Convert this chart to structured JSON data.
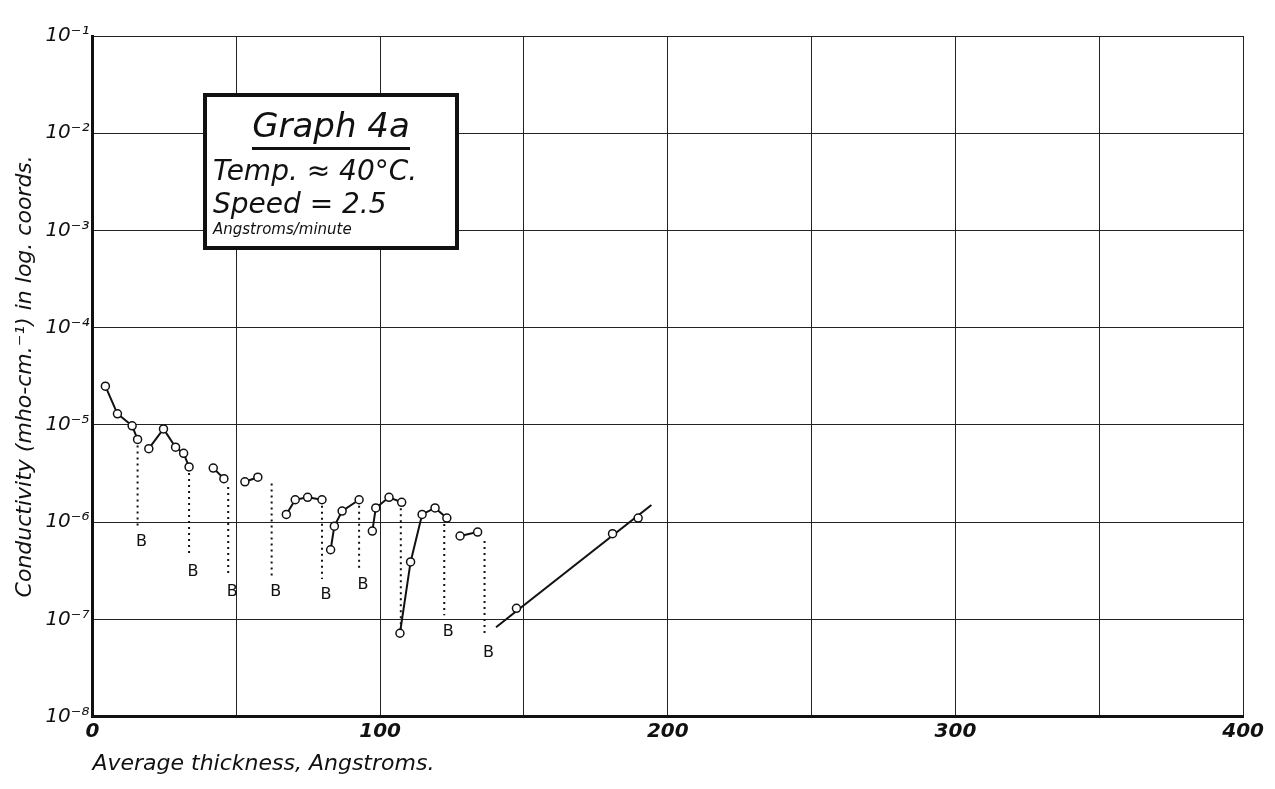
{
  "chart_data": {
    "type": "line",
    "title": "Graph 4a",
    "subtitle": "Temp. ≈ 40°C.",
    "annotations": [
      "Speed = 2.5",
      "Angstroms/minute",
      {
        "text": "B",
        "x": 15.7,
        "y": 9.1e-07
      },
      {
        "text": "B",
        "x": 33.6,
        "y": 4.5e-07
      },
      {
        "text": "B",
        "x": 47.2,
        "y": 2.8e-07
      },
      {
        "text": "B",
        "x": 62.3,
        "y": 2.8e-07
      },
      {
        "text": "B",
        "x": 79.8,
        "y": 2.6e-07
      },
      {
        "text": "B",
        "x": 92.7,
        "y": 3.3e-07
      },
      {
        "text": "B",
        "x": 122.3,
        "y": 1.1e-07
      },
      {
        "text": "B",
        "x": 136.3,
        "y": 6.6e-08
      }
    ],
    "xlabel": "Average thickness, Angstroms.",
    "ylabel": "Conductivity (mho-cm.⁻¹) in log. coords.",
    "xlim": [
      0,
      400
    ],
    "xticks": [
      0,
      {
        "value": 50,
        "label": null
      },
      100,
      {
        "value": 150,
        "label": null
      },
      200,
      {
        "value": 250,
        "label": null
      },
      300,
      {
        "value": 350,
        "label": null
      },
      400
    ],
    "ylim": [
      1e-08,
      0.1
    ],
    "yticks": [
      {
        "value": 1e-08,
        "label": "10⁻⁸"
      },
      {
        "value": 1e-07,
        "label": "10⁻⁷"
      },
      {
        "value": 1e-06,
        "label": "10⁻⁶"
      },
      {
        "value": 1e-05,
        "label": "10⁻⁵"
      },
      {
        "value": 0.0001,
        "label": "10⁻⁴"
      },
      {
        "value": 0.001,
        "label": "10⁻³"
      },
      {
        "value": 0.01,
        "label": "10⁻²"
      },
      {
        "value": 0.1,
        "label": "10⁻¹"
      }
    ],
    "log": "y",
    "grid": true,
    "legend": false,
    "marker": "circle",
    "line_style": "solid",
    "series": [
      {
        "color": "#111111",
        "x": [
          4.5,
          8.7,
          13.8,
          15.7
        ],
        "values": [
          2.5e-05,
          1.3e-05,
          9.8e-06,
          7.1e-06
        ]
      },
      {
        "color": "#111111",
        "x": [
          19.6,
          24.7,
          28.9,
          31.7,
          33.6
        ],
        "values": [
          5.7e-06,
          9.1e-06,
          5.9e-06,
          5.1e-06,
          3.7e-06
        ]
      },
      {
        "color": "#111111",
        "x": [
          42,
          45.7
        ],
        "values": [
          3.6e-06,
          2.8e-06
        ]
      },
      {
        "color": "#111111",
        "x": [
          53,
          57.5
        ],
        "values": [
          2.6e-06,
          2.9e-06
        ]
      },
      {
        "color": "#111111",
        "x": [
          67.4,
          70.5,
          74.8,
          79.8
        ],
        "values": [
          1.2e-06,
          1.7e-06,
          1.8e-06,
          1.7e-06
        ]
      },
      {
        "color": "#111111",
        "x": [
          82.8,
          84.1,
          86.8,
          92.7
        ],
        "values": [
          5.2e-07,
          9.1e-07,
          1.3e-06,
          1.7e-06
        ]
      },
      {
        "color": "#111111",
        "x": [
          97.3,
          98.5,
          103.1,
          107.5
        ],
        "values": [
          8.1e-07,
          1.4e-06,
          1.8e-06,
          1.6e-06
        ]
      },
      {
        "color": "#111111",
        "x": [
          106.9,
          110.6,
          114.6,
          119.1,
          123.2
        ],
        "values": [
          7.2e-08,
          3.9e-07,
          1.2e-06,
          1.4e-06,
          1.1e-06
        ]
      },
      {
        "color": "#111111",
        "x": [
          127.8,
          133.9
        ],
        "values": [
          7.2e-07,
          7.9e-07
        ]
      },
      {
        "type": "scatter",
        "color": "#111111",
        "x": [
          147.4,
          180.8,
          189.7
        ],
        "values": [
          1.3e-07,
          7.6e-07,
          1.1e-06
        ]
      },
      {
        "color": "#111111",
        "marker": "none",
        "x": [
          140.3,
          194.3
        ],
        "values": [
          8.3e-08,
          1.5e-06
        ]
      },
      {
        "color": "#111111",
        "marker": "none",
        "line_style": "dotted",
        "x": [
          15.7,
          15.7
        ],
        "values": [
          7.1e-06,
          9.1e-07
        ]
      },
      {
        "color": "#111111",
        "marker": "none",
        "line_style": "dotted",
        "x": [
          33.6,
          33.6
        ],
        "values": [
          3.7e-06,
          4.5e-07
        ]
      },
      {
        "color": "#111111",
        "marker": "none",
        "line_style": "dotted",
        "x": [
          47.2,
          47.2
        ],
        "values": [
          2.3e-06,
          2.8e-07
        ]
      },
      {
        "color": "#111111",
        "marker": "none",
        "line_style": "dotted",
        "x": [
          62.3,
          62.3
        ],
        "values": [
          2.5e-06,
          2.8e-07
        ]
      },
      {
        "color": "#111111",
        "marker": "none",
        "line_style": "dotted",
        "x": [
          79.8,
          79.8
        ],
        "values": [
          1.7e-06,
          2.6e-07
        ]
      },
      {
        "color": "#111111",
        "marker": "none",
        "line_style": "dotted",
        "x": [
          92.7,
          92.7
        ],
        "values": [
          1.7e-06,
          3.3e-07
        ]
      },
      {
        "color": "#111111",
        "marker": "none",
        "line_style": "dotted",
        "x": [
          107.2,
          107.2
        ],
        "values": [
          1.6e-06,
          7.2e-08
        ]
      },
      {
        "color": "#111111",
        "marker": "none",
        "line_style": "dotted",
        "x": [
          122.3,
          122.3
        ],
        "values": [
          1.1e-06,
          1.1e-07
        ]
      },
      {
        "color": "#111111",
        "marker": "none",
        "line_style": "dotted",
        "x": [
          136.3,
          136.3
        ],
        "values": [
          6.4e-07,
          6.6e-08
        ]
      }
    ]
  }
}
